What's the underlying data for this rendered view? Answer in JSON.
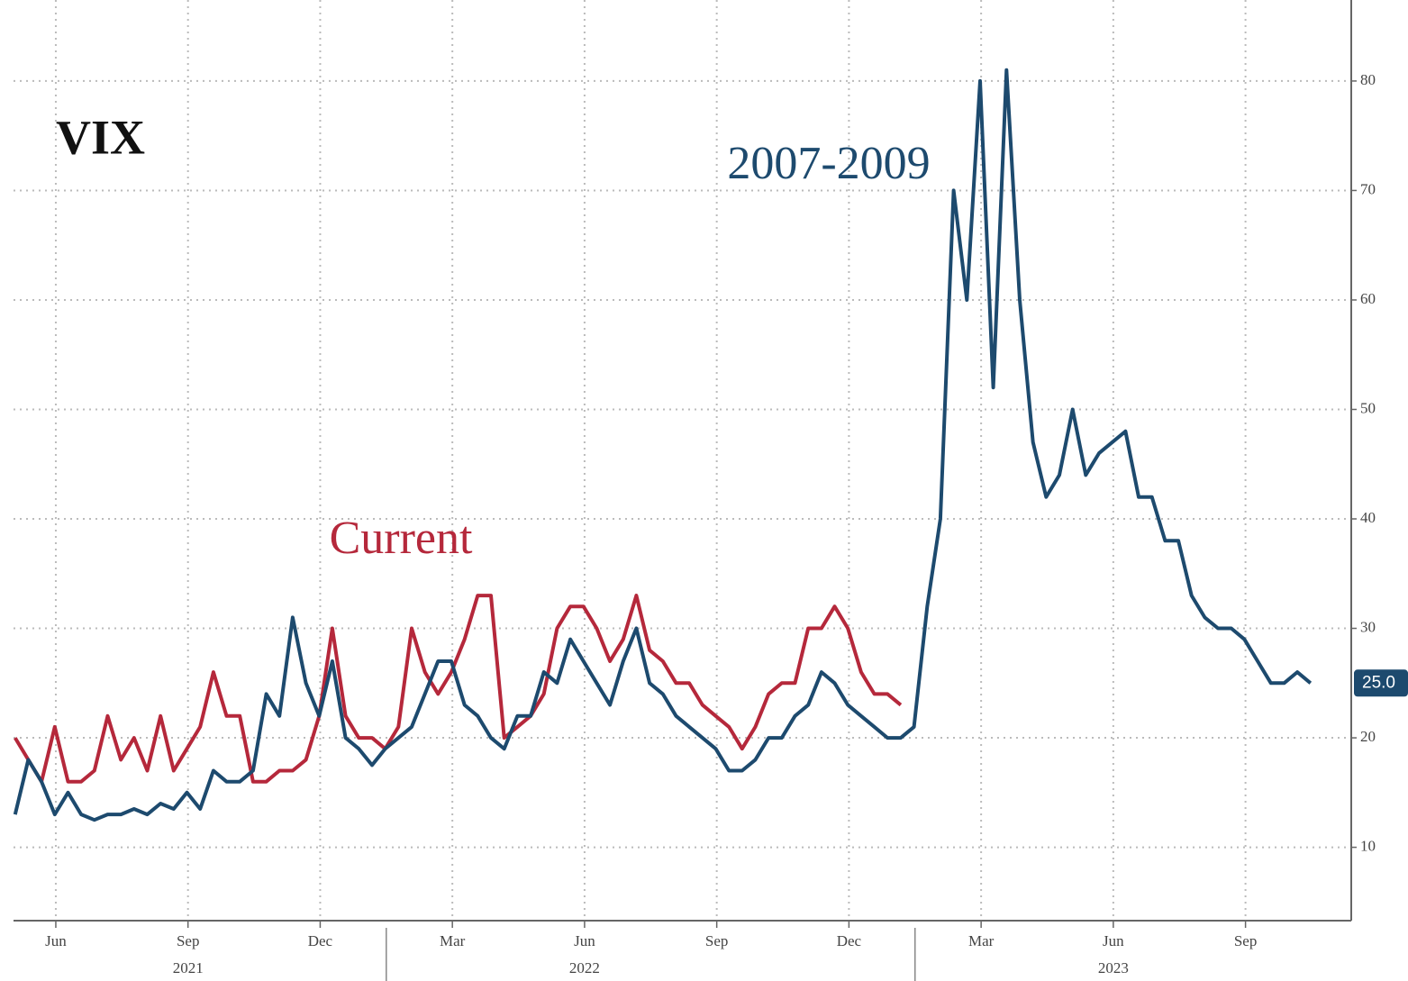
{
  "chart_data": {
    "type": "line",
    "title": "VIX",
    "x": [
      2021.34,
      2021.365,
      2021.39,
      2021.415,
      2021.44,
      2021.465,
      2021.49,
      2021.515,
      2021.54,
      2021.565,
      2021.59,
      2021.615,
      2021.64,
      2021.665,
      2021.69,
      2021.715,
      2021.74,
      2021.765,
      2021.79,
      2021.815,
      2021.84,
      2021.865,
      2021.89,
      2021.915,
      2021.94,
      2021.965,
      2021.99,
      2022.015,
      2022.04,
      2022.065,
      2022.09,
      2022.115,
      2022.14,
      2022.165,
      2022.19,
      2022.215,
      2022.24,
      2022.265,
      2022.29,
      2022.315,
      2022.34,
      2022.365,
      2022.39,
      2022.415,
      2022.44,
      2022.465,
      2022.49,
      2022.515,
      2022.54,
      2022.565,
      2022.59,
      2022.615,
      2022.64,
      2022.665,
      2022.69,
      2022.715,
      2022.74,
      2022.765,
      2022.79,
      2022.815,
      2022.84,
      2022.865,
      2022.89,
      2022.915,
      2022.94,
      2022.965,
      2022.99,
      2023.015,
      2023.04,
      2023.065,
      2023.09,
      2023.115,
      2023.14,
      2023.165,
      2023.19,
      2023.215,
      2023.24,
      2023.265,
      2023.29,
      2023.315,
      2023.34,
      2023.365,
      2023.39,
      2023.415,
      2023.44,
      2023.465,
      2023.49,
      2023.515,
      2023.54,
      2023.565,
      2023.59,
      2023.615,
      2023.64,
      2023.665,
      2023.69,
      2023.715,
      2023.74,
      2023.765,
      2023.79
    ],
    "series": [
      {
        "name": "2007-2009",
        "color": "#1d4a6e",
        "values": [
          13,
          18,
          16,
          13,
          15,
          13,
          12.5,
          13,
          13,
          13.5,
          13,
          14,
          13.5,
          15,
          13.5,
          17,
          16,
          16,
          17,
          24,
          22,
          31,
          25,
          22,
          27,
          20,
          19,
          17.5,
          19,
          20,
          21,
          24,
          27,
          27,
          23,
          22,
          20,
          19,
          22,
          22,
          26,
          25,
          29,
          27,
          25,
          23,
          27,
          30,
          25,
          24,
          22,
          21,
          20,
          19,
          17,
          17,
          18,
          20,
          20,
          22,
          23,
          26,
          25,
          23,
          22,
          21,
          20,
          20,
          21,
          32,
          40,
          70,
          60,
          80,
          52,
          81,
          60,
          47,
          42,
          44,
          50,
          44,
          46,
          47,
          48,
          42,
          42,
          38,
          38,
          33,
          31,
          30,
          30,
          29,
          27,
          25,
          25,
          26,
          25
        ],
        "value_labels": [
          null,
          null,
          null,
          null,
          null,
          null,
          null,
          null,
          null,
          null,
          null,
          null,
          null,
          null,
          null,
          null,
          null,
          null,
          null,
          null,
          null,
          null,
          null,
          null,
          null,
          null,
          null,
          null,
          null,
          null,
          null,
          null,
          null,
          null,
          null,
          null,
          null,
          null,
          null,
          null,
          null,
          null,
          null,
          null,
          null,
          null,
          null,
          null,
          null,
          null,
          null,
          null,
          null,
          null,
          null,
          null,
          null,
          null,
          null,
          null,
          null,
          null,
          null,
          null,
          null,
          null,
          null,
          null,
          null,
          null,
          null,
          null,
          null,
          null,
          null,
          null,
          null,
          null,
          null,
          null,
          null,
          null,
          null,
          null,
          null,
          null,
          null,
          null,
          null,
          null,
          null,
          null,
          null,
          null,
          null,
          null,
          null,
          null,
          "25.0"
        ]
      },
      {
        "name": "Current",
        "color": "#b5283b",
        "values": [
          20,
          18,
          16,
          21,
          16,
          16,
          17,
          22,
          18,
          20,
          17,
          22,
          17,
          19,
          21,
          26,
          22,
          22,
          16,
          16,
          17,
          17,
          18,
          22,
          30,
          22,
          20,
          20,
          19,
          21,
          30,
          26,
          24,
          26,
          29,
          33,
          33,
          20,
          21,
          22,
          24,
          30,
          32,
          32,
          30,
          27,
          29,
          33,
          28,
          27,
          25,
          25,
          23,
          22,
          21,
          19,
          21,
          24,
          25,
          25,
          30,
          30,
          32,
          30,
          26,
          24,
          24,
          23,
          null,
          null,
          null,
          null,
          null,
          null,
          null,
          null,
          null,
          null,
          null,
          null,
          null,
          null,
          null,
          null,
          null,
          null,
          null,
          null,
          null,
          null,
          null,
          null,
          null,
          null,
          null,
          null,
          null,
          null,
          null
        ]
      }
    ],
    "xlim": [
      2021.337,
      2023.867
    ],
    "xticks": [
      {
        "value": 2021.417,
        "label": "Jun"
      },
      {
        "value": 2021.667,
        "label": "Sep"
      },
      {
        "value": 2021.917,
        "label": "Dec"
      },
      {
        "value": 2022.167,
        "label": "Mar"
      },
      {
        "value": 2022.417,
        "label": "Jun"
      },
      {
        "value": 2022.667,
        "label": "Sep"
      },
      {
        "value": 2022.917,
        "label": "Dec"
      },
      {
        "value": 2023.167,
        "label": "Mar"
      },
      {
        "value": 2023.417,
        "label": "Jun"
      },
      {
        "value": 2023.667,
        "label": "Sep"
      }
    ],
    "year_labels": [
      "2021",
      "2022",
      "2023"
    ],
    "ylim": [
      3.3,
      87.4
    ],
    "yticks": [
      10,
      20,
      30,
      40,
      50,
      60,
      70,
      80
    ],
    "grid": true
  }
}
